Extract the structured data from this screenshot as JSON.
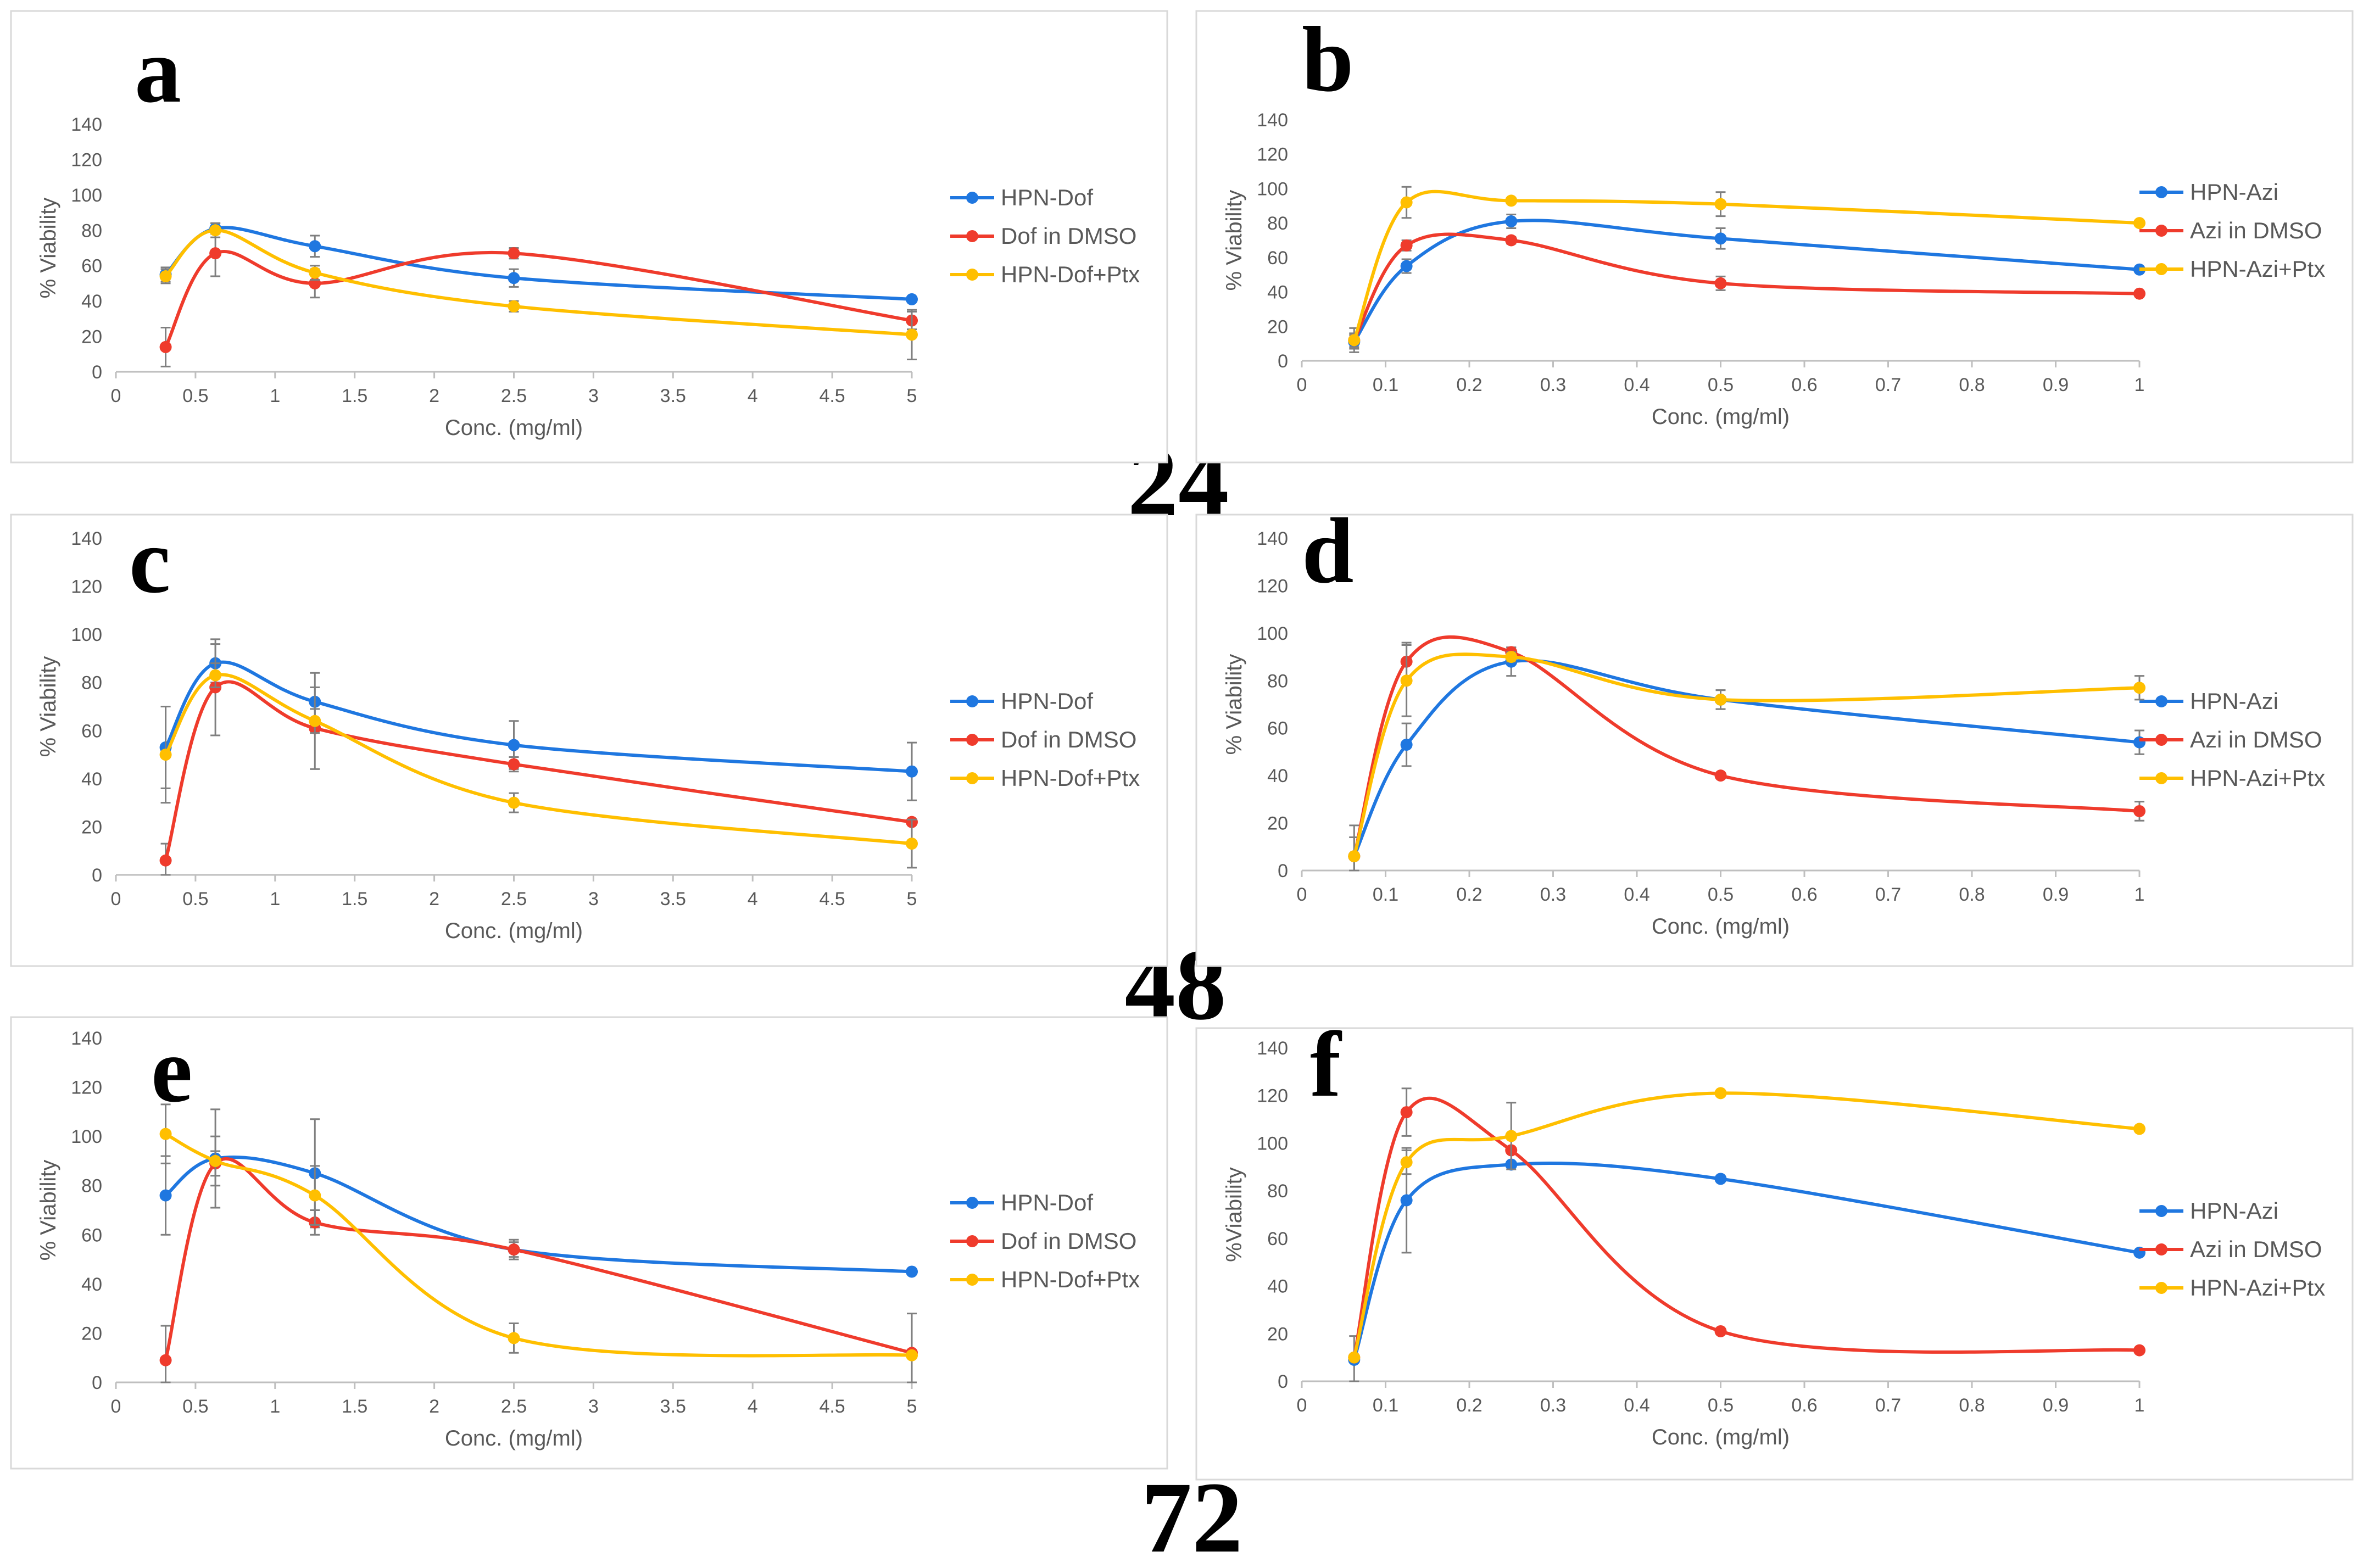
{
  "colors": {
    "HPN": "#1f77e0",
    "DMSO": "#ef3b2c",
    "Ptx": "#ffbf00"
  },
  "time_labels": [
    "24",
    "48",
    "72"
  ],
  "chart_data": [
    {
      "id": "a",
      "type": "line",
      "letter": "a",
      "xlabel": "Conc. (mg/ml)",
      "ylabel": "% Viability",
      "xlim": [
        0,
        5
      ],
      "ylim": [
        0,
        140
      ],
      "xticks": [
        "0",
        "0.5",
        "1",
        "1.5",
        "2",
        "2.5",
        "3",
        "3.5",
        "4",
        "4.5",
        "5"
      ],
      "yticks": [
        "0",
        "20",
        "40",
        "60",
        "80",
        "100",
        "120",
        "140"
      ],
      "grid": false,
      "legend_position": "right",
      "x": [
        0.3125,
        0.625,
        1.25,
        2.5,
        5
      ],
      "series": [
        {
          "name": "HPN-Dof",
          "color_key": "HPN",
          "values": [
            55,
            81,
            71,
            53,
            41
          ],
          "errors": [
            4,
            3,
            6,
            5,
            1
          ]
        },
        {
          "name": "Dof in DMSO",
          "color_key": "DMSO",
          "values": [
            14,
            67,
            50,
            67,
            29
          ],
          "errors": [
            11,
            13,
            8,
            3,
            5
          ]
        },
        {
          "name": "HPN-Dof+Ptx",
          "color_key": "Ptx",
          "values": [
            54,
            80,
            56,
            37,
            21
          ],
          "errors": [
            4,
            4,
            4,
            3,
            14
          ]
        }
      ]
    },
    {
      "id": "b",
      "type": "line",
      "letter": "b",
      "xlabel": "Conc. (mg/ml)",
      "ylabel": "% Viability",
      "xlim": [
        0,
        1
      ],
      "ylim": [
        0,
        140
      ],
      "xticks": [
        "0",
        "0.1",
        "0.2",
        "0.3",
        "0.4",
        "0.5",
        "0.6",
        "0.7",
        "0.8",
        "0.9",
        "1"
      ],
      "yticks": [
        "0",
        "20",
        "40",
        "60",
        "80",
        "100",
        "120",
        "140"
      ],
      "grid": false,
      "legend_position": "right",
      "x": [
        0.0625,
        0.125,
        0.25,
        0.5,
        1
      ],
      "series": [
        {
          "name": "HPN-Azi",
          "color_key": "HPN",
          "values": [
            11,
            55,
            81,
            71,
            53
          ],
          "errors": [
            4,
            4,
            4,
            6,
            1
          ]
        },
        {
          "name": "Azi in DMSO",
          "color_key": "DMSO",
          "values": [
            12,
            67,
            70,
            45,
            39
          ],
          "errors": [
            4,
            3,
            2,
            4,
            1
          ]
        },
        {
          "name": "HPN-Azi+Ptx",
          "color_key": "Ptx",
          "values": [
            12,
            92,
            93,
            91,
            80
          ],
          "errors": [
            7,
            9,
            1,
            7,
            1
          ]
        }
      ]
    },
    {
      "id": "c",
      "type": "line",
      "letter": "c",
      "xlabel": "Conc. (mg/ml)",
      "ylabel": "% Viability",
      "xlim": [
        0,
        5
      ],
      "ylim": [
        0,
        140
      ],
      "xticks": [
        "0",
        "0.5",
        "1",
        "1.5",
        "2",
        "2.5",
        "3",
        "3.5",
        "4",
        "4.5",
        "5"
      ],
      "yticks": [
        "0",
        "20",
        "40",
        "60",
        "80",
        "100",
        "120",
        "140"
      ],
      "grid": false,
      "legend_position": "right",
      "x": [
        0.3125,
        0.625,
        1.25,
        2.5,
        5
      ],
      "series": [
        {
          "name": "HPN-Dof",
          "color_key": "HPN",
          "values": [
            53,
            88,
            72,
            54,
            43
          ],
          "errors": [
            17,
            8,
            12,
            10,
            12
          ]
        },
        {
          "name": "Dof in DMSO",
          "color_key": "DMSO",
          "values": [
            6,
            78,
            61,
            46,
            22
          ],
          "errors": [
            7,
            20,
            17,
            3,
            1
          ]
        },
        {
          "name": "HPN-Dof+Ptx",
          "color_key": "Ptx",
          "values": [
            50,
            83,
            64,
            30,
            13
          ],
          "errors": [
            20,
            5,
            5,
            4,
            10
          ]
        }
      ]
    },
    {
      "id": "d",
      "type": "line",
      "letter": "d",
      "xlabel": "Conc. (mg/ml)",
      "ylabel": "% Viability",
      "xlim": [
        0,
        1
      ],
      "ylim": [
        0,
        140
      ],
      "xticks": [
        "0",
        "0.1",
        "0.2",
        "0.3",
        "0.4",
        "0.5",
        "0.6",
        "0.7",
        "0.8",
        "0.9",
        "1"
      ],
      "yticks": [
        "0",
        "20",
        "40",
        "60",
        "80",
        "100",
        "120",
        "140"
      ],
      "grid": false,
      "legend_position": "right",
      "x": [
        0.0625,
        0.125,
        0.25,
        0.5,
        1
      ],
      "series": [
        {
          "name": "HPN-Azi",
          "color_key": "HPN",
          "values": [
            6,
            53,
            88,
            72,
            54
          ],
          "errors": [
            13,
            9,
            6,
            4,
            5
          ]
        },
        {
          "name": "Azi in DMSO",
          "color_key": "DMSO",
          "values": [
            6,
            88,
            92,
            40,
            25
          ],
          "errors": [
            8,
            8,
            2,
            1,
            4
          ]
        },
        {
          "name": "HPN-Azi+Ptx",
          "color_key": "Ptx",
          "values": [
            6,
            80,
            90,
            72,
            77
          ],
          "errors": [
            8,
            15,
            2,
            4,
            5
          ]
        }
      ]
    },
    {
      "id": "e",
      "type": "line",
      "letter": "e",
      "xlabel": "Conc. (mg/ml)",
      "ylabel": "% Viability",
      "xlim": [
        0,
        5
      ],
      "ylim": [
        0,
        140
      ],
      "xticks": [
        "0",
        "0.5",
        "1",
        "1.5",
        "2",
        "2.5",
        "3",
        "3.5",
        "4",
        "4.5",
        "5"
      ],
      "yticks": [
        "0",
        "20",
        "40",
        "60",
        "80",
        "100",
        "120",
        "140"
      ],
      "grid": false,
      "legend_position": "right",
      "x": [
        0.3125,
        0.625,
        1.25,
        2.5,
        5
      ],
      "series": [
        {
          "name": "HPN-Dof",
          "color_key": "HPN",
          "values": [
            76,
            91,
            85,
            54,
            45
          ],
          "errors": [
            16,
            20,
            22,
            4,
            1
          ]
        },
        {
          "name": "Dof in DMSO",
          "color_key": "DMSO",
          "values": [
            9,
            89,
            65,
            54,
            12
          ],
          "errors": [
            14,
            5,
            5,
            3,
            16
          ]
        },
        {
          "name": "HPN-Dof+Ptx",
          "color_key": "Ptx",
          "values": [
            101,
            90,
            76,
            18,
            11
          ],
          "errors": [
            12,
            10,
            12,
            6,
            1
          ]
        }
      ]
    },
    {
      "id": "f",
      "type": "line",
      "letter": "f",
      "xlabel": "Conc. (mg/ml)",
      "ylabel": "%Viability",
      "xlim": [
        0,
        1
      ],
      "ylim": [
        0,
        140
      ],
      "xticks": [
        "0",
        "0.1",
        "0.2",
        "0.3",
        "0.4",
        "0.5",
        "0.6",
        "0.7",
        "0.8",
        "0.9",
        "1"
      ],
      "yticks": [
        "0",
        "20",
        "40",
        "60",
        "80",
        "100",
        "120",
        "140"
      ],
      "grid": false,
      "legend_position": "right",
      "x": [
        0.0625,
        0.125,
        0.25,
        0.5,
        1
      ],
      "series": [
        {
          "name": "HPN-Azi",
          "color_key": "HPN",
          "values": [
            9,
            76,
            91,
            85,
            54
          ],
          "errors": [
            10,
            22,
            1,
            1,
            1
          ]
        },
        {
          "name": "Azi in DMSO",
          "color_key": "DMSO",
          "values": [
            10,
            113,
            97,
            21,
            13
          ],
          "errors": [
            1,
            10,
            1,
            1,
            1
          ]
        },
        {
          "name": "HPN-Azi+Ptx",
          "color_key": "Ptx",
          "values": [
            10,
            92,
            103,
            121,
            106
          ],
          "errors": [
            1,
            5,
            14,
            1,
            1
          ]
        }
      ]
    }
  ]
}
